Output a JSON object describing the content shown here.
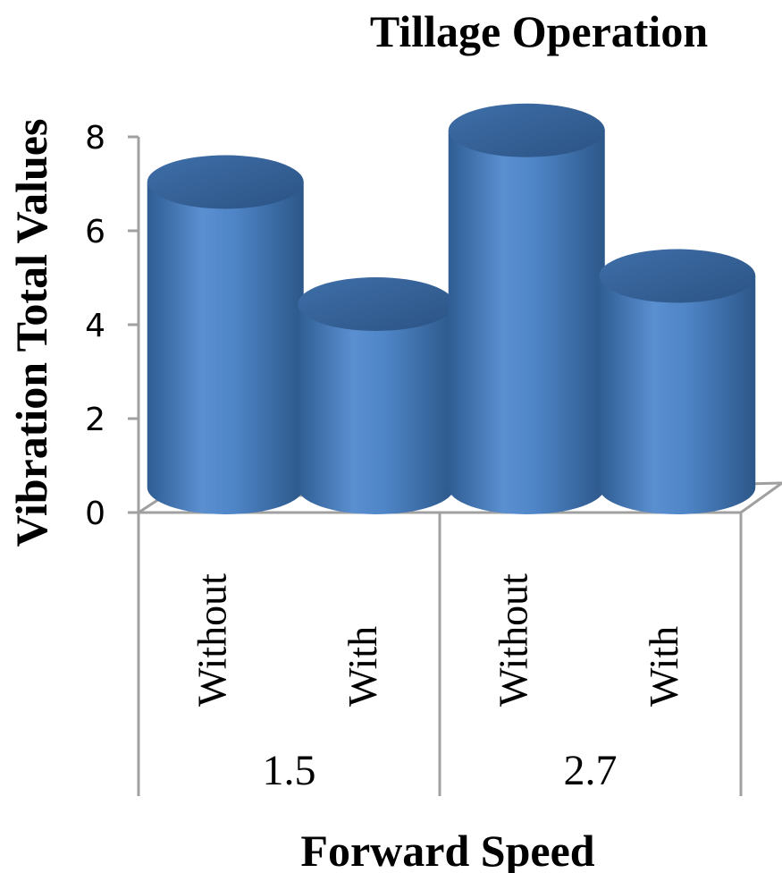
{
  "chart_data": {
    "type": "bar",
    "style": "3d-cylinder",
    "title": "Tillage Operation",
    "xlabel": "Forward Speed",
    "ylabel": "Vibration Total  Values",
    "ylim": [
      0,
      8
    ],
    "yticks": [
      "0",
      "2",
      "4",
      "6",
      "8"
    ],
    "groups": [
      {
        "label": "1.5",
        "categories": [
          "Without",
          "With"
        ],
        "values": [
          7.0,
          4.4
        ]
      },
      {
        "label": "2.7",
        "categories": [
          "Without",
          "With"
        ],
        "values": [
          8.1,
          5.0
        ]
      }
    ],
    "bar_color": "#4F81BD",
    "grid": false,
    "legend": "none"
  }
}
